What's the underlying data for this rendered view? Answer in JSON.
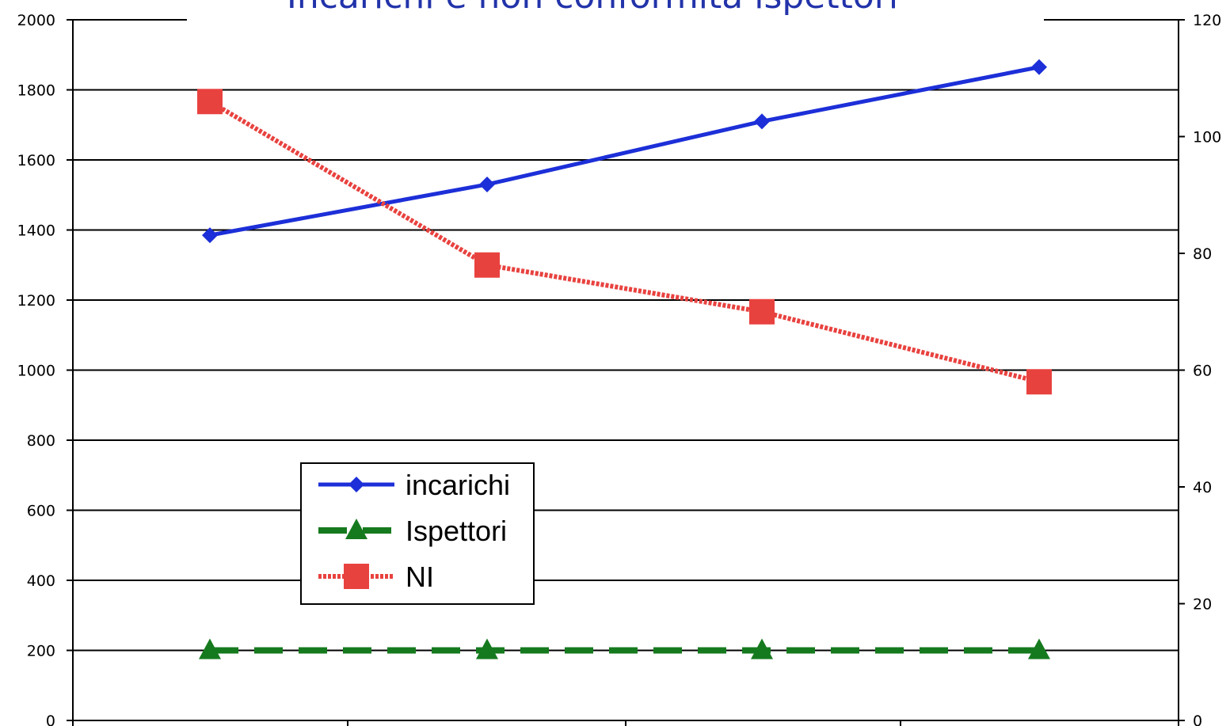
{
  "chart_data": {
    "type": "line",
    "title": "Incarichi e non conformità ispettori",
    "categories": [
      "",
      "",
      "",
      ""
    ],
    "y_left": {
      "ylim": [
        0,
        2000
      ],
      "ticks": [
        0,
        200,
        400,
        600,
        800,
        1000,
        1200,
        1400,
        1600,
        1800,
        2000
      ]
    },
    "y_right": {
      "ylim": [
        0,
        120
      ],
      "ticks": [
        0,
        20,
        40,
        60,
        80,
        100,
        120
      ]
    },
    "grid": true,
    "legend": {
      "placement": "lower-left"
    },
    "series": [
      {
        "name": "incarichi",
        "axis": "left",
        "values": [
          1385,
          1530,
          1710,
          1865
        ],
        "color": "#1c2fd8",
        "marker": "diamond",
        "style": "solid"
      },
      {
        "name": "Ispettori",
        "axis": "right",
        "values": [
          12,
          12,
          12,
          12
        ],
        "color": "#157a1e",
        "marker": "triangle",
        "style": "dashed"
      },
      {
        "name": "NI",
        "axis": "right",
        "values": [
          106,
          78,
          70,
          58
        ],
        "color": "#e8423f",
        "marker": "square",
        "style": "dotted"
      }
    ]
  }
}
